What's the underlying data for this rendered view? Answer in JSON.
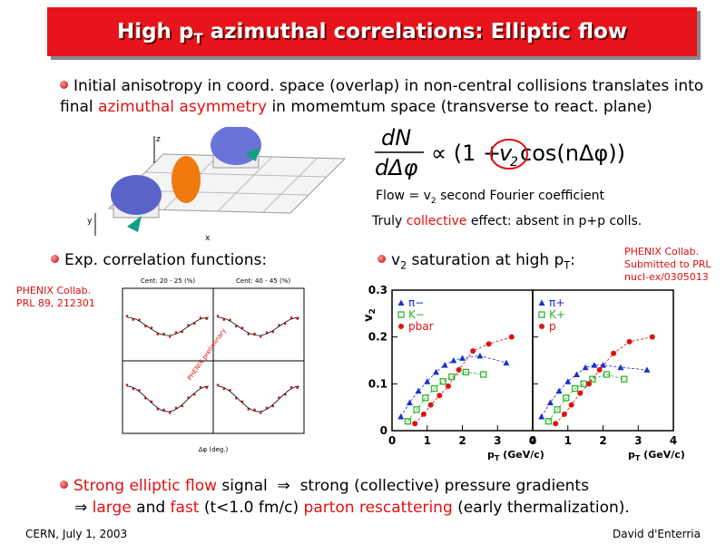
{
  "header": {
    "title": [
      "High p",
      "T",
      " azimuthal correlations: Elliptic flow"
    ]
  },
  "bullet1": {
    "parts": [
      "Initial anisotropy in coord. space (overlap) in non-central collisions translates into final ",
      "azimuthal asymmetry",
      " in momemtum space (transverse to react. plane)"
    ]
  },
  "illustration": {
    "axis_labels": [
      "z",
      "y",
      "x"
    ]
  },
  "formula": {
    "numerator": "dN",
    "denominator": "dΔφ",
    "prop": "∝ (1 + ",
    "v": "v",
    "sub": "2",
    "tail": " cos(nΔφ))"
  },
  "flow_note": [
    "Flow = v",
    "2",
    " second Fourier coefficient"
  ],
  "collective_note": [
    "Truly ",
    "collective",
    " effect: absent in p+p colls."
  ],
  "bullet2": "Exp. correlation functions:",
  "bullet3": [
    "v",
    "2",
    " saturation at high p",
    "T",
    ":"
  ],
  "ref_left": [
    "PHENIX Collab.",
    "PRL 89, 212301"
  ],
  "ref_right": [
    "PHENIX Collab.",
    "Submitted to PRL",
    "nucl-ex/0305013"
  ],
  "corr_figure": {
    "panels": [
      "Cent: 20 - 25 (%)",
      "Cent: 40 - 45 (%)"
    ],
    "stamp": "PHENIX preliminary",
    "xlabel": "Δφ (deg.)"
  },
  "v2_plot": {
    "ylabel": [
      "v",
      "2"
    ],
    "xlabel": [
      "p",
      "T",
      " (GeV/c)"
    ],
    "xlim": [
      0,
      4
    ],
    "xticks": [
      0,
      1,
      2,
      3,
      4
    ],
    "ylim": [
      0,
      0.3
    ],
    "yticks": [
      0,
      0.1,
      0.2,
      0.3
    ],
    "panels": [
      {
        "series": [
          {
            "name": "π−",
            "color": "#1a2fd0",
            "marker": "triangle",
            "x": [
              0.25,
              0.5,
              0.75,
              1.0,
              1.25,
              1.5,
              1.75,
              2.0,
              2.5,
              3.25
            ],
            "values": [
              0.03,
              0.06,
              0.085,
              0.105,
              0.125,
              0.14,
              0.15,
              0.155,
              0.16,
              0.145
            ]
          },
          {
            "name": "K−",
            "color": "#2db52d",
            "marker": "square",
            "x": [
              0.45,
              0.7,
              0.95,
              1.2,
              1.45,
              1.7,
              2.1,
              2.6
            ],
            "values": [
              0.02,
              0.045,
              0.07,
              0.09,
              0.105,
              0.115,
              0.125,
              0.12
            ]
          },
          {
            "name": "pbar",
            "color": "#e01010",
            "marker": "circle",
            "x": [
              0.65,
              0.9,
              1.1,
              1.35,
              1.6,
              1.9,
              2.3,
              2.75,
              3.4
            ],
            "values": [
              0.015,
              0.035,
              0.055,
              0.075,
              0.095,
              0.13,
              0.17,
              0.185,
              0.2
            ]
          }
        ]
      },
      {
        "series": [
          {
            "name": "π+",
            "color": "#1a2fd0",
            "marker": "triangle",
            "x": [
              0.25,
              0.5,
              0.75,
              1.0,
              1.25,
              1.5,
              1.75,
              2.0,
              2.5,
              3.25
            ],
            "values": [
              0.03,
              0.06,
              0.085,
              0.105,
              0.12,
              0.135,
              0.14,
              0.14,
              0.135,
              0.13
            ]
          },
          {
            "name": "K+",
            "color": "#2db52d",
            "marker": "square",
            "x": [
              0.45,
              0.7,
              0.95,
              1.2,
              1.45,
              1.7,
              2.1,
              2.6
            ],
            "values": [
              0.02,
              0.045,
              0.07,
              0.09,
              0.1,
              0.11,
              0.12,
              0.11
            ]
          },
          {
            "name": "p",
            "color": "#e01010",
            "marker": "circle",
            "x": [
              0.65,
              0.9,
              1.1,
              1.35,
              1.6,
              1.9,
              2.3,
              2.75,
              3.4
            ],
            "values": [
              0.015,
              0.035,
              0.055,
              0.08,
              0.1,
              0.13,
              0.165,
              0.19,
              0.2
            ]
          }
        ]
      }
    ]
  },
  "bullet4": [
    "Strong elliptic flow",
    " signal  ⇒  strong (collective) pressure gradients"
  ],
  "line5": [
    "⇒ ",
    "large",
    " and ",
    "fast",
    " (t<1.0 fm/c) ",
    "parton rescattering",
    " (early thermalization)."
  ],
  "footer": {
    "left": "CERN, July 1, 2003",
    "right": "David d'Enterria"
  }
}
